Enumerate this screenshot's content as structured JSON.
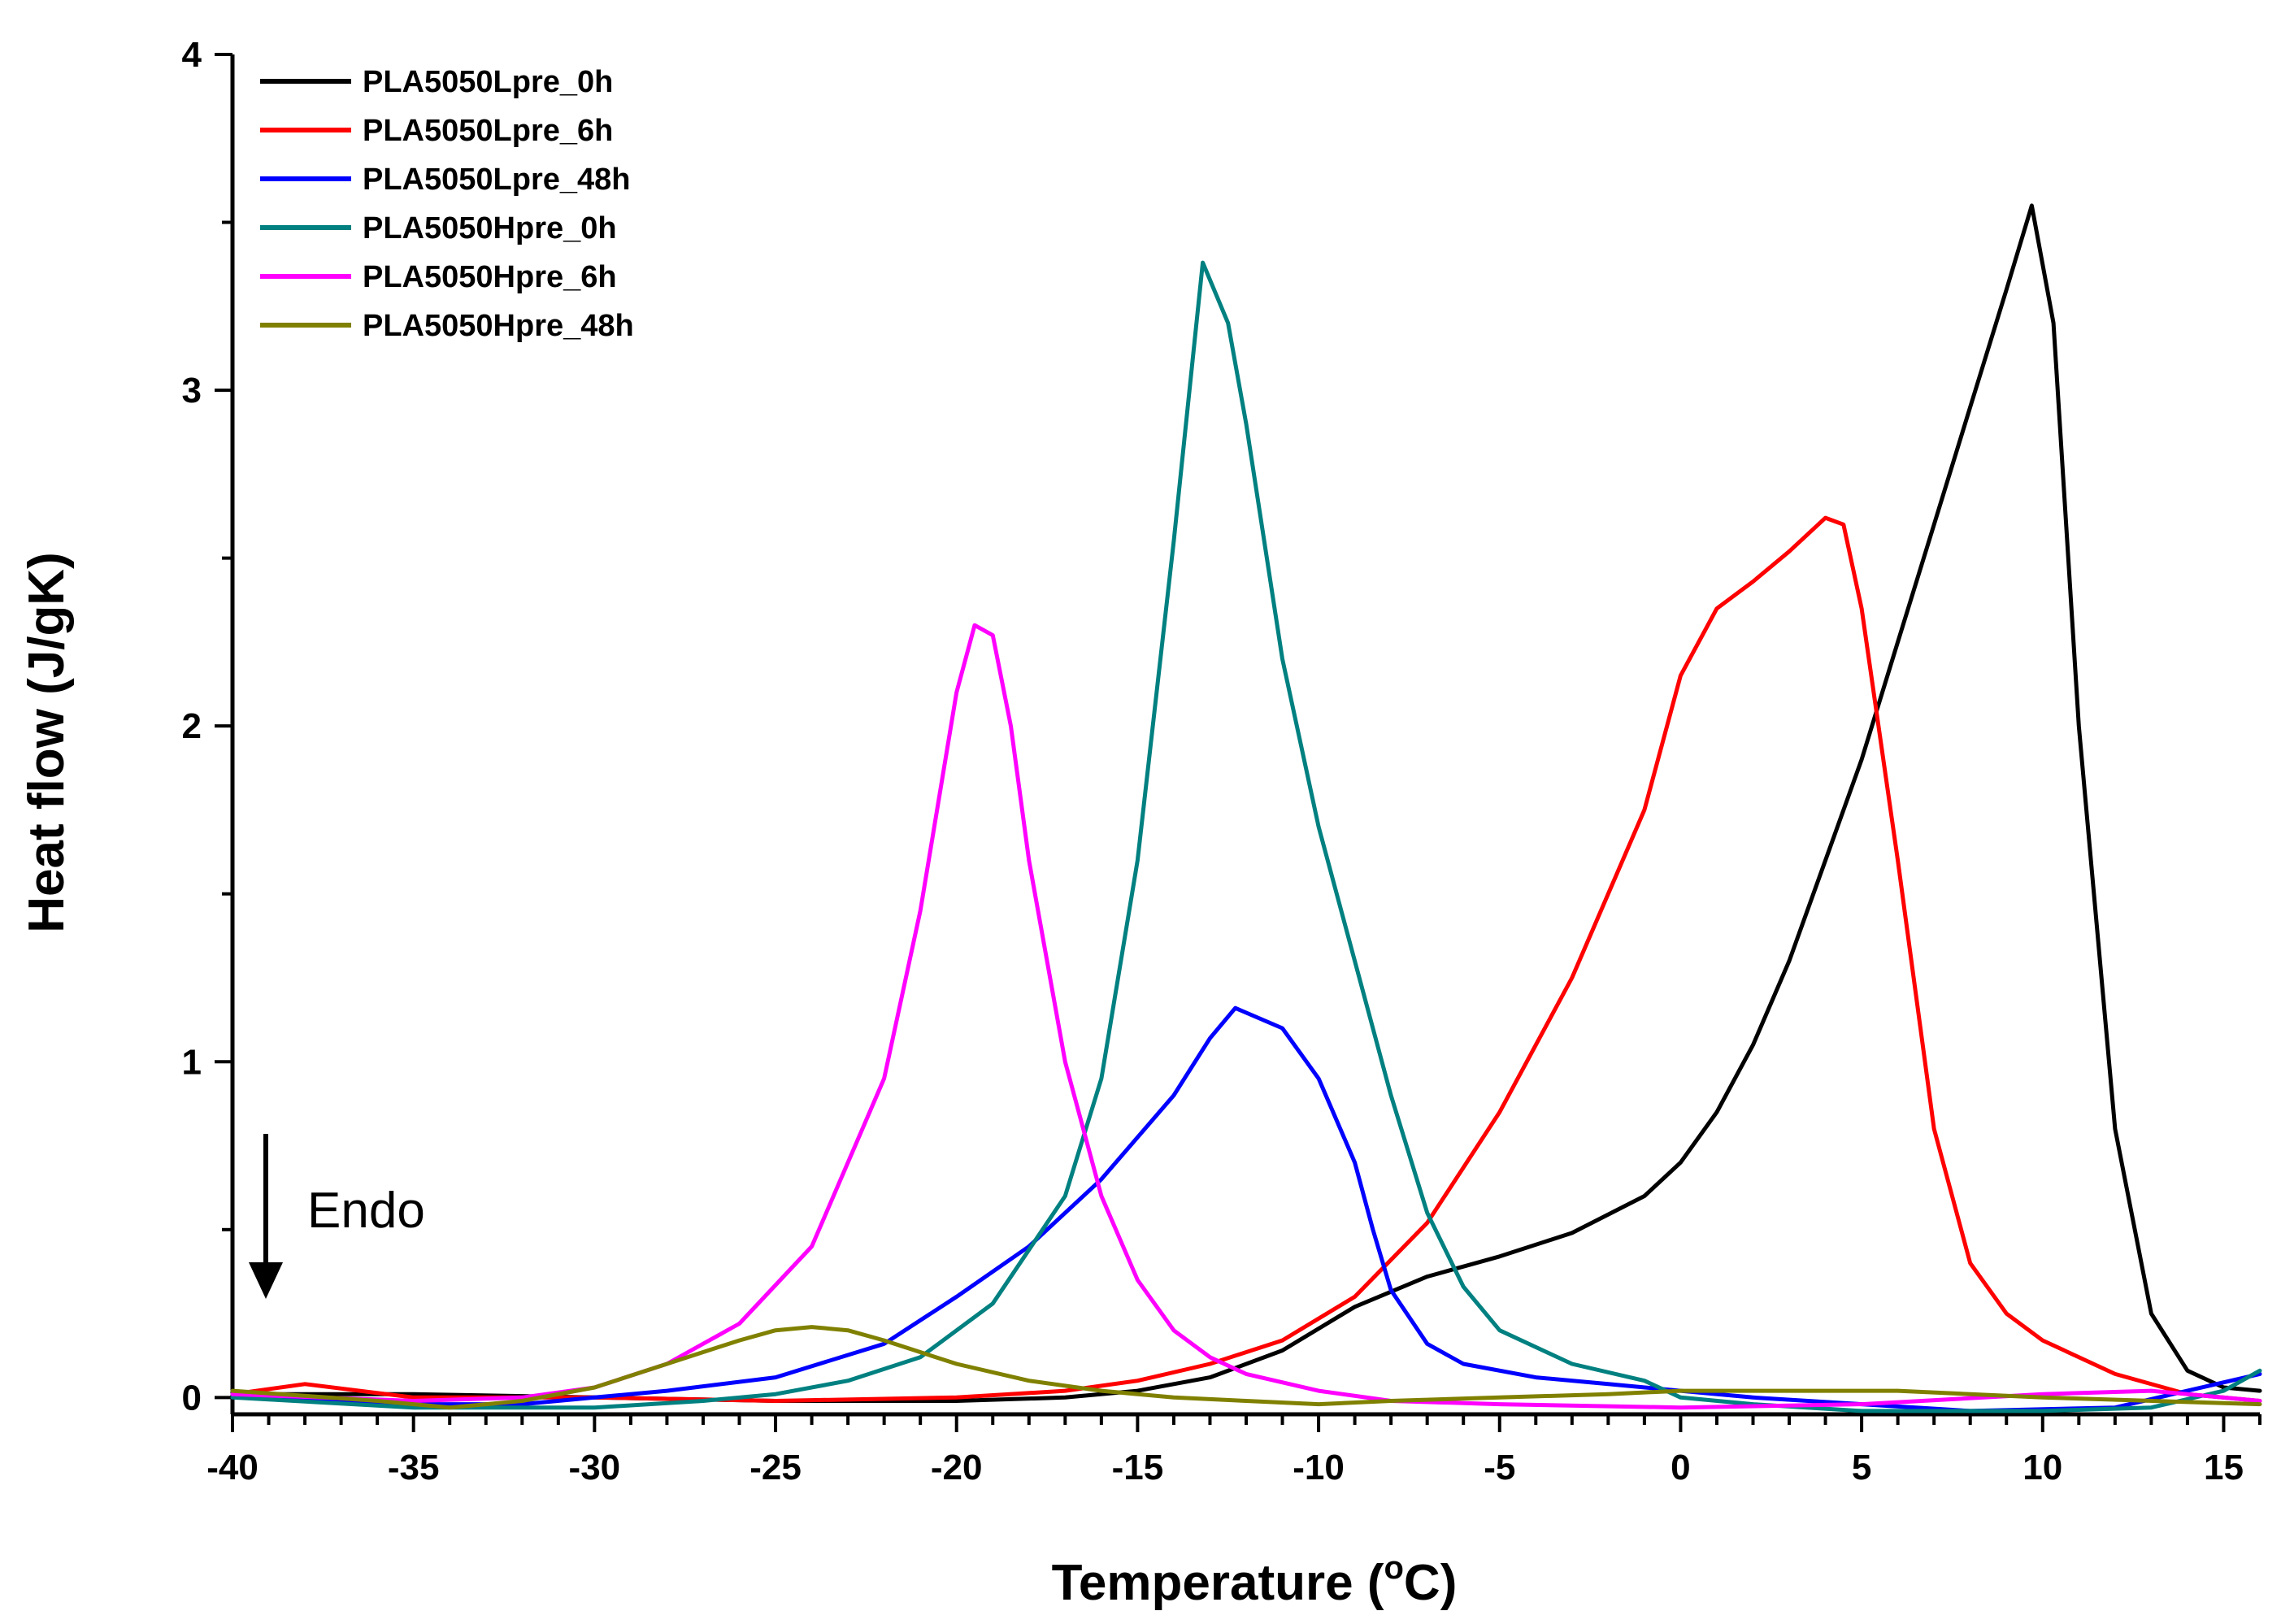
{
  "chart_data": {
    "type": "line",
    "title": "",
    "xlabel_main": "Temperature (",
    "xlabel_sup": "o",
    "xlabel_tail": "C)",
    "ylabel": "Heat flow (J/gK)",
    "xlim": [
      -40,
      16
    ],
    "ylim": [
      -0.05,
      4
    ],
    "xticks": [
      -40,
      -35,
      -30,
      -25,
      -20,
      -15,
      -10,
      -5,
      0,
      5,
      10,
      15
    ],
    "yticks": [
      0,
      1,
      2,
      3,
      4
    ],
    "legend_position": "top-left",
    "annotation": {
      "text": "Endo",
      "arrow": "down"
    },
    "series": [
      {
        "name": "PLA5050Lpre_0h",
        "color": "#000000",
        "x": [
          -40,
          -35,
          -30,
          -25,
          -20,
          -17,
          -15,
          -13,
          -11,
          -9,
          -7,
          -5,
          -3,
          -1,
          0,
          1,
          2,
          3,
          4,
          5,
          6,
          7,
          8,
          9,
          9.7,
          10.3,
          11,
          12,
          13,
          14,
          15,
          16
        ],
        "y": [
          0.01,
          0.01,
          0.0,
          -0.01,
          -0.01,
          0.0,
          0.02,
          0.06,
          0.14,
          0.27,
          0.36,
          0.42,
          0.49,
          0.6,
          0.7,
          0.85,
          1.05,
          1.3,
          1.6,
          1.9,
          2.25,
          2.6,
          2.95,
          3.3,
          3.55,
          3.2,
          2.0,
          0.8,
          0.25,
          0.08,
          0.03,
          0.02
        ]
      },
      {
        "name": "PLA5050Lpre_6h",
        "color": "#ff0000",
        "x": [
          -40,
          -38,
          -35,
          -30,
          -25,
          -20,
          -17,
          -15,
          -13,
          -11,
          -9,
          -7,
          -5,
          -3,
          -1,
          0,
          1,
          2,
          3,
          4,
          4.5,
          5,
          6,
          7,
          8,
          9,
          10,
          12,
          14,
          16
        ],
        "y": [
          0.01,
          0.04,
          0.0,
          0.0,
          -0.01,
          0.0,
          0.02,
          0.05,
          0.1,
          0.17,
          0.3,
          0.52,
          0.85,
          1.25,
          1.75,
          2.15,
          2.35,
          2.43,
          2.52,
          2.62,
          2.6,
          2.35,
          1.6,
          0.8,
          0.4,
          0.25,
          0.17,
          0.07,
          0.01,
          -0.01
        ]
      },
      {
        "name": "PLA5050Lpre_48h",
        "color": "#0000ff",
        "x": [
          -40,
          -35,
          -32,
          -30,
          -28,
          -25,
          -22,
          -20,
          -18,
          -16,
          -14,
          -13,
          -12.3,
          -11,
          -10,
          -9,
          -8.5,
          -8,
          -7,
          -6,
          -4,
          -2,
          0,
          2,
          5,
          8,
          12,
          16
        ],
        "y": [
          0.01,
          -0.02,
          -0.02,
          0.0,
          0.02,
          0.06,
          0.16,
          0.3,
          0.45,
          0.65,
          0.9,
          1.07,
          1.16,
          1.1,
          0.95,
          0.7,
          0.5,
          0.32,
          0.16,
          0.1,
          0.06,
          0.04,
          0.02,
          0.0,
          -0.02,
          -0.04,
          -0.03,
          0.07
        ]
      },
      {
        "name": "PLA5050Hpre_0h",
        "color": "#008080",
        "x": [
          -40,
          -35,
          -30,
          -27,
          -25,
          -23,
          -21,
          -19,
          -17,
          -16,
          -15,
          -14,
          -13.2,
          -12.5,
          -12,
          -11,
          -10,
          -9,
          -8,
          -7,
          -6,
          -5,
          -3,
          -1,
          0,
          2,
          5,
          10,
          13,
          15,
          16
        ],
        "y": [
          0.0,
          -0.03,
          -0.03,
          -0.01,
          0.01,
          0.05,
          0.12,
          0.28,
          0.6,
          0.95,
          1.6,
          2.55,
          3.38,
          3.2,
          2.9,
          2.2,
          1.7,
          1.3,
          0.9,
          0.55,
          0.33,
          0.2,
          0.1,
          0.05,
          0.0,
          -0.02,
          -0.04,
          -0.04,
          -0.03,
          0.02,
          0.08
        ]
      },
      {
        "name": "PLA5050Hpre_6h",
        "color": "#ff00ff",
        "x": [
          -40,
          -35,
          -32,
          -30,
          -28,
          -26,
          -24,
          -22,
          -21,
          -20,
          -19.5,
          -19,
          -18.5,
          -18,
          -17,
          -16,
          -15,
          -14,
          -13,
          -12,
          -10,
          -8,
          -5,
          0,
          5,
          10,
          13,
          16
        ],
        "y": [
          0.01,
          -0.01,
          0.0,
          0.03,
          0.1,
          0.22,
          0.45,
          0.95,
          1.45,
          2.1,
          2.3,
          2.27,
          2.0,
          1.6,
          1.0,
          0.6,
          0.35,
          0.2,
          0.12,
          0.07,
          0.02,
          -0.01,
          -0.02,
          -0.03,
          -0.02,
          0.01,
          0.02,
          -0.01
        ]
      },
      {
        "name": "PLA5050Hpre_48h",
        "color": "#808000",
        "x": [
          -40,
          -36,
          -34,
          -32,
          -30,
          -28,
          -26,
          -25,
          -24,
          -23,
          -22,
          -20,
          -18,
          -16,
          -14,
          -12,
          -10,
          -8,
          -5,
          -2,
          0,
          3,
          6,
          10,
          16
        ],
        "y": [
          0.02,
          -0.01,
          -0.03,
          -0.01,
          0.03,
          0.1,
          0.17,
          0.2,
          0.21,
          0.2,
          0.17,
          0.1,
          0.05,
          0.02,
          0.0,
          -0.01,
          -0.02,
          -0.01,
          0.0,
          0.01,
          0.02,
          0.02,
          0.02,
          0.0,
          -0.02
        ]
      }
    ]
  }
}
